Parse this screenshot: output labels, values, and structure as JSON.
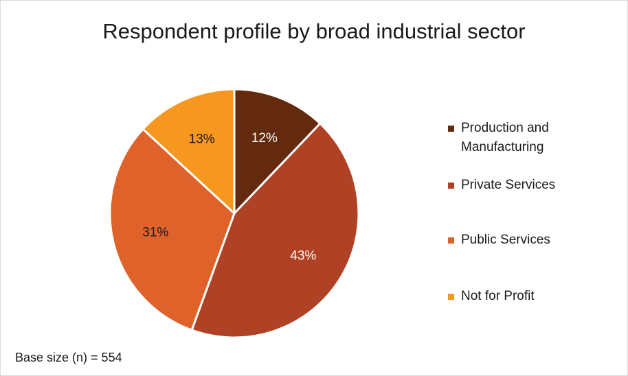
{
  "chart_data": {
    "type": "pie",
    "title": "Respondent profile by broad industrial sector",
    "categories": [
      "Production and Manufacturing",
      "Private Services",
      "Public Services",
      "Not for Profit"
    ],
    "values": [
      12,
      43,
      31,
      13
    ],
    "value_labels": [
      "12%",
      "43%",
      "31%",
      "13%"
    ],
    "colors": [
      "#632A0E",
      "#AF4224",
      "#E0622B",
      "#F6971F"
    ],
    "label_colors": [
      "#ffffff",
      "#ffffff",
      "#1a1a1a",
      "#1a1a1a"
    ],
    "legend_position": "right",
    "start_angle": "12 o'clock, clockwise",
    "footnote": "Base size (n) = 554"
  }
}
